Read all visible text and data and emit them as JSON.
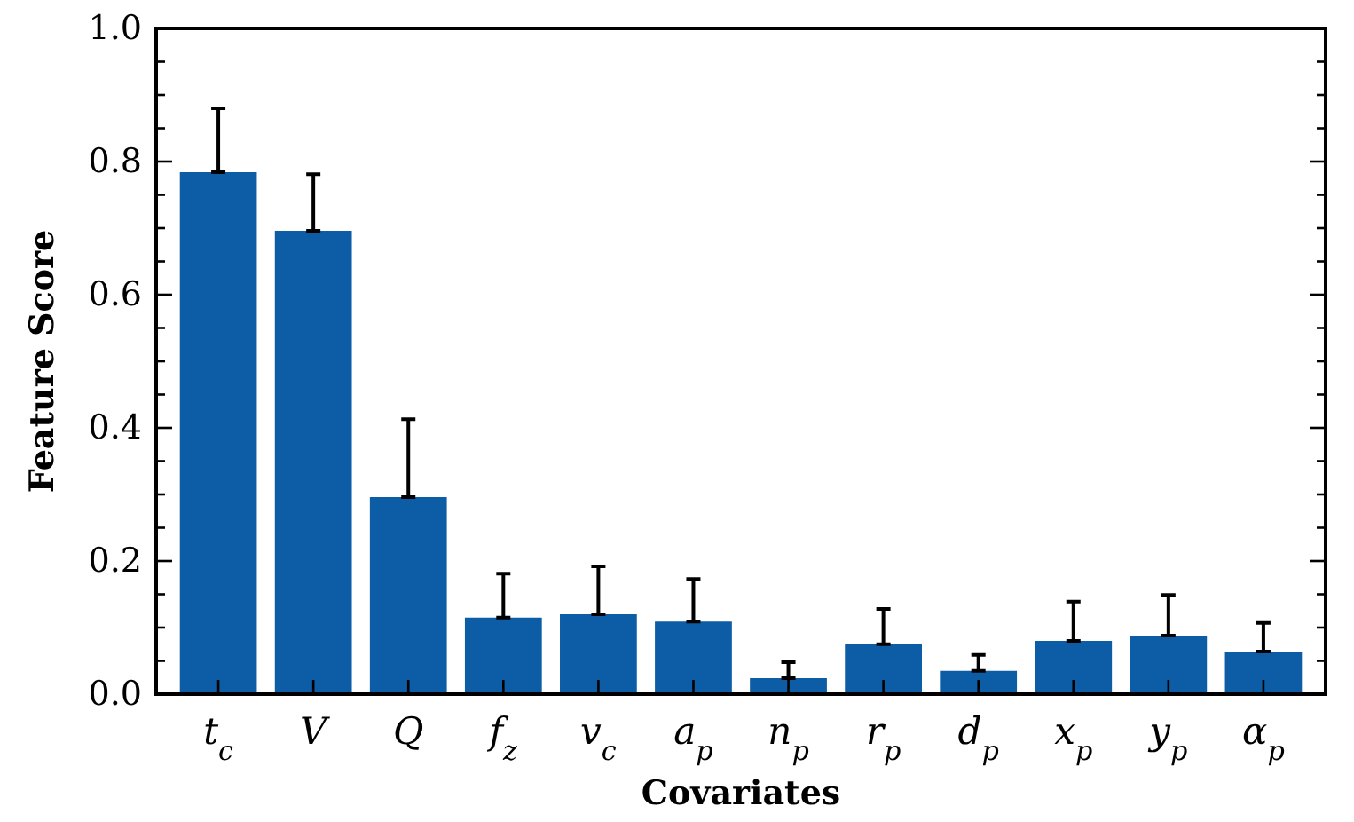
{
  "chart_data": {
    "type": "bar",
    "xlabel": "Covariates",
    "ylabel": "Feature Score",
    "categories": [
      "t$_{c}$",
      "V",
      "Q",
      "f$_{z}$",
      "v$_{c}$",
      "a$_{p}$",
      "n$_{p}$",
      "r$_{p}$",
      "d$_{p}$",
      "x$_{p}$",
      "y$_{p}$",
      "α$_{p}$"
    ],
    "values": [
      0.784,
      0.696,
      0.296,
      0.115,
      0.12,
      0.109,
      0.024,
      0.075,
      0.035,
      0.08,
      0.088,
      0.064
    ],
    "errors": [
      [
        0.784,
        0.88
      ],
      [
        0.696,
        0.781
      ],
      [
        0.296,
        0.413
      ],
      [
        0.115,
        0.181
      ],
      [
        0.12,
        0.192
      ],
      [
        0.109,
        0.173
      ],
      [
        0.024,
        0.048
      ],
      [
        0.075,
        0.128
      ],
      [
        0.035,
        0.059
      ],
      [
        0.08,
        0.139
      ],
      [
        0.088,
        0.149
      ],
      [
        0.064,
        0.107
      ]
    ],
    "color": "#0d5ca6",
    "ylim": [
      0,
      1
    ],
    "yticks": [
      {
        "value": 0,
        "label": "0.0"
      },
      {
        "value": 0.05,
        "label": null
      },
      {
        "value": 0.1,
        "label": null
      },
      {
        "value": 0.15,
        "label": null
      },
      {
        "value": 0.2,
        "label": "0.2"
      },
      {
        "value": 0.25,
        "label": null
      },
      {
        "value": 0.3,
        "label": null
      },
      {
        "value": 0.35,
        "label": null
      },
      {
        "value": 0.4,
        "label": "0.4"
      },
      {
        "value": 0.45,
        "label": null
      },
      {
        "value": 0.5,
        "label": null
      },
      {
        "value": 0.55,
        "label": null
      },
      {
        "value": 0.6,
        "label": "0.6"
      },
      {
        "value": 0.65,
        "label": null
      },
      {
        "value": 0.7,
        "label": null
      },
      {
        "value": 0.75,
        "label": null
      },
      {
        "value": 0.8,
        "label": "0.8"
      },
      {
        "value": 0.85,
        "label": null
      },
      {
        "value": 0.9,
        "label": null
      },
      {
        "value": 0.95,
        "label": null
      },
      {
        "value": 1,
        "label": "1.0"
      }
    ],
    "grid": false
  }
}
